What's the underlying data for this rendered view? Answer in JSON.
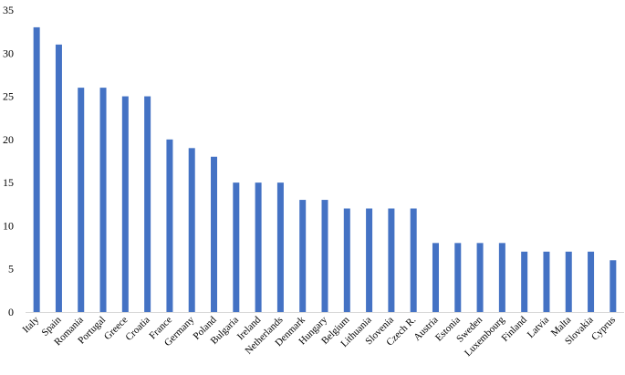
{
  "chart_data": {
    "type": "bar",
    "title": "",
    "xlabel": "",
    "ylabel": "",
    "ylim": [
      0,
      35
    ],
    "yticks": [
      0,
      5,
      10,
      15,
      20,
      25,
      30,
      35
    ],
    "grid": false,
    "legend": "none",
    "bar_color": "#4472C4",
    "categories": [
      "Italy",
      "Spain",
      "Romania",
      "Portugal",
      "Greece",
      "Croatia",
      "France",
      "Germany",
      "Poland",
      "Bulgaria",
      "Ireland",
      "Netherlands",
      "Denmark",
      "Hungary",
      "Belgium",
      "Lithuania",
      "Slovenia",
      "Czech R.",
      "Austria",
      "Estonia",
      "Sweden",
      "Luxembourg",
      "Finland",
      "Latvia",
      "Malta",
      "Slovakia",
      "Cyprus"
    ],
    "values": [
      33,
      31,
      26,
      26,
      25,
      25,
      20,
      19,
      18,
      15,
      15,
      15,
      13,
      13,
      12,
      12,
      12,
      12,
      8,
      8,
      8,
      8,
      7,
      7,
      7,
      7,
      6
    ]
  }
}
